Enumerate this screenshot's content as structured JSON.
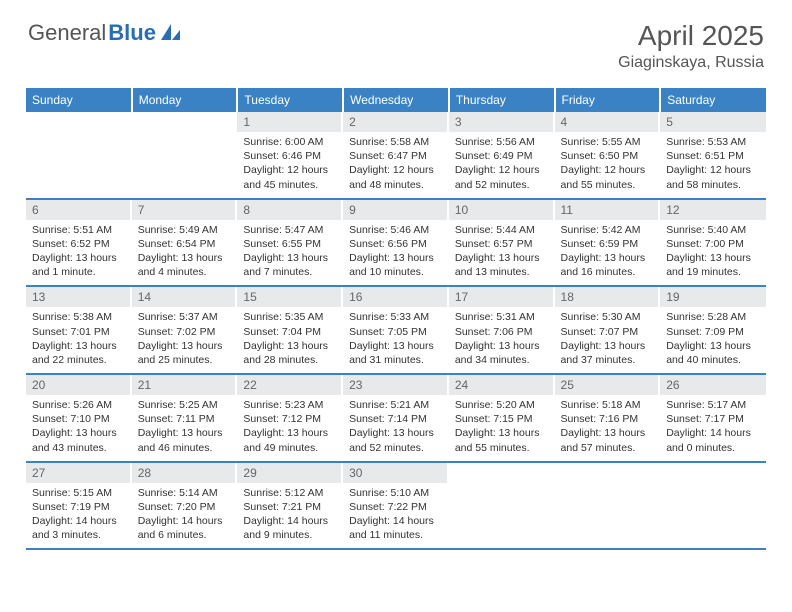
{
  "logo": {
    "text1": "General",
    "text2": "Blue"
  },
  "title": "April 2025",
  "location": "Giaginskaya, Russia",
  "colors": {
    "header_bg": "#3b82c4",
    "header_text": "#ffffff",
    "daynum_bg": "#e8e9ea",
    "daynum_text": "#666666",
    "border": "#3b82c4",
    "body_text": "#333333",
    "logo_gray": "#555555",
    "logo_blue": "#2a6db5"
  },
  "weekdays": [
    "Sunday",
    "Monday",
    "Tuesday",
    "Wednesday",
    "Thursday",
    "Friday",
    "Saturday"
  ],
  "weeks": [
    [
      null,
      null,
      {
        "n": "1",
        "sr": "6:00 AM",
        "ss": "6:46 PM",
        "dl": "12 hours and 45 minutes."
      },
      {
        "n": "2",
        "sr": "5:58 AM",
        "ss": "6:47 PM",
        "dl": "12 hours and 48 minutes."
      },
      {
        "n": "3",
        "sr": "5:56 AM",
        "ss": "6:49 PM",
        "dl": "12 hours and 52 minutes."
      },
      {
        "n": "4",
        "sr": "5:55 AM",
        "ss": "6:50 PM",
        "dl": "12 hours and 55 minutes."
      },
      {
        "n": "5",
        "sr": "5:53 AM",
        "ss": "6:51 PM",
        "dl": "12 hours and 58 minutes."
      }
    ],
    [
      {
        "n": "6",
        "sr": "5:51 AM",
        "ss": "6:52 PM",
        "dl": "13 hours and 1 minute."
      },
      {
        "n": "7",
        "sr": "5:49 AM",
        "ss": "6:54 PM",
        "dl": "13 hours and 4 minutes."
      },
      {
        "n": "8",
        "sr": "5:47 AM",
        "ss": "6:55 PM",
        "dl": "13 hours and 7 minutes."
      },
      {
        "n": "9",
        "sr": "5:46 AM",
        "ss": "6:56 PM",
        "dl": "13 hours and 10 minutes."
      },
      {
        "n": "10",
        "sr": "5:44 AM",
        "ss": "6:57 PM",
        "dl": "13 hours and 13 minutes."
      },
      {
        "n": "11",
        "sr": "5:42 AM",
        "ss": "6:59 PM",
        "dl": "13 hours and 16 minutes."
      },
      {
        "n": "12",
        "sr": "5:40 AM",
        "ss": "7:00 PM",
        "dl": "13 hours and 19 minutes."
      }
    ],
    [
      {
        "n": "13",
        "sr": "5:38 AM",
        "ss": "7:01 PM",
        "dl": "13 hours and 22 minutes."
      },
      {
        "n": "14",
        "sr": "5:37 AM",
        "ss": "7:02 PM",
        "dl": "13 hours and 25 minutes."
      },
      {
        "n": "15",
        "sr": "5:35 AM",
        "ss": "7:04 PM",
        "dl": "13 hours and 28 minutes."
      },
      {
        "n": "16",
        "sr": "5:33 AM",
        "ss": "7:05 PM",
        "dl": "13 hours and 31 minutes."
      },
      {
        "n": "17",
        "sr": "5:31 AM",
        "ss": "7:06 PM",
        "dl": "13 hours and 34 minutes."
      },
      {
        "n": "18",
        "sr": "5:30 AM",
        "ss": "7:07 PM",
        "dl": "13 hours and 37 minutes."
      },
      {
        "n": "19",
        "sr": "5:28 AM",
        "ss": "7:09 PM",
        "dl": "13 hours and 40 minutes."
      }
    ],
    [
      {
        "n": "20",
        "sr": "5:26 AM",
        "ss": "7:10 PM",
        "dl": "13 hours and 43 minutes."
      },
      {
        "n": "21",
        "sr": "5:25 AM",
        "ss": "7:11 PM",
        "dl": "13 hours and 46 minutes."
      },
      {
        "n": "22",
        "sr": "5:23 AM",
        "ss": "7:12 PM",
        "dl": "13 hours and 49 minutes."
      },
      {
        "n": "23",
        "sr": "5:21 AM",
        "ss": "7:14 PM",
        "dl": "13 hours and 52 minutes."
      },
      {
        "n": "24",
        "sr": "5:20 AM",
        "ss": "7:15 PM",
        "dl": "13 hours and 55 minutes."
      },
      {
        "n": "25",
        "sr": "5:18 AM",
        "ss": "7:16 PM",
        "dl": "13 hours and 57 minutes."
      },
      {
        "n": "26",
        "sr": "5:17 AM",
        "ss": "7:17 PM",
        "dl": "14 hours and 0 minutes."
      }
    ],
    [
      {
        "n": "27",
        "sr": "5:15 AM",
        "ss": "7:19 PM",
        "dl": "14 hours and 3 minutes."
      },
      {
        "n": "28",
        "sr": "5:14 AM",
        "ss": "7:20 PM",
        "dl": "14 hours and 6 minutes."
      },
      {
        "n": "29",
        "sr": "5:12 AM",
        "ss": "7:21 PM",
        "dl": "14 hours and 9 minutes."
      },
      {
        "n": "30",
        "sr": "5:10 AM",
        "ss": "7:22 PM",
        "dl": "14 hours and 11 minutes."
      },
      null,
      null,
      null
    ]
  ],
  "labels": {
    "sunrise": "Sunrise:",
    "sunset": "Sunset:",
    "daylight": "Daylight:"
  }
}
